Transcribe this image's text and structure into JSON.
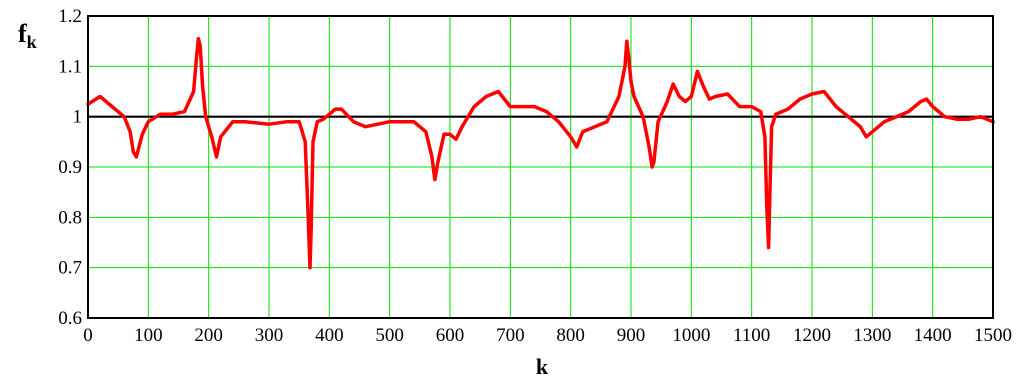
{
  "chart_data": {
    "type": "line",
    "title": "",
    "xlabel": "k",
    "ylabel": {
      "base": "f",
      "subscript": "k"
    },
    "xlim": [
      0,
      1500
    ],
    "ylim": [
      0.6,
      1.2
    ],
    "xticks": [
      "0",
      "100",
      "200",
      "300",
      "400",
      "500",
      "600",
      "700",
      "800",
      "900",
      "1000",
      "1100",
      "1200",
      "1300",
      "1400",
      "1500"
    ],
    "yticks": [
      "0.6",
      "0.7",
      "0.8",
      "0.9",
      "1",
      "1.1",
      "1.2"
    ],
    "xtick_values": [
      0,
      100,
      200,
      300,
      400,
      500,
      600,
      700,
      800,
      900,
      1000,
      1100,
      1200,
      1300,
      1400,
      1500
    ],
    "ytick_values": [
      0.6,
      0.7,
      0.8,
      0.9,
      1.0,
      1.1,
      1.2
    ],
    "grid": true,
    "reference_line": {
      "y": 1.0,
      "color": "#000000"
    },
    "colors": {
      "series": "#ff0000",
      "grid": "#00e000",
      "reference": "#000000"
    },
    "series": [
      {
        "x": [
          0,
          20,
          40,
          60,
          70,
          75,
          80,
          90,
          100,
          120,
          140,
          160,
          175,
          180,
          183,
          186,
          190,
          195,
          205,
          213,
          220,
          240,
          260,
          300,
          330,
          350,
          360,
          365,
          368,
          370,
          373,
          380,
          390,
          410,
          420,
          440,
          460,
          480,
          500,
          540,
          560,
          570,
          575,
          580,
          590,
          600,
          610,
          620,
          640,
          660,
          680,
          700,
          720,
          740,
          760,
          780,
          800,
          810,
          820,
          840,
          860,
          880,
          890,
          893,
          896,
          900,
          905,
          920,
          930,
          935,
          938,
          945,
          960,
          970,
          980,
          990,
          1000,
          1010,
          1020,
          1030,
          1040,
          1060,
          1080,
          1100,
          1115,
          1122,
          1125,
          1128,
          1130,
          1133,
          1140,
          1160,
          1180,
          1200,
          1220,
          1240,
          1260,
          1280,
          1290,
          1300,
          1320,
          1340,
          1360,
          1380,
          1390,
          1400,
          1410,
          1420,
          1440,
          1460,
          1480,
          1500
        ],
        "y": [
          1.025,
          1.04,
          1.02,
          1.0,
          0.97,
          0.93,
          0.92,
          0.965,
          0.99,
          1.005,
          1.005,
          1.01,
          1.05,
          1.12,
          1.155,
          1.14,
          1.06,
          1.0,
          0.96,
          0.92,
          0.96,
          0.99,
          0.99,
          0.985,
          0.99,
          0.99,
          0.95,
          0.8,
          0.7,
          0.78,
          0.95,
          0.99,
          0.995,
          1.015,
          1.015,
          0.99,
          0.98,
          0.985,
          0.99,
          0.99,
          0.97,
          0.92,
          0.875,
          0.91,
          0.965,
          0.965,
          0.955,
          0.98,
          1.02,
          1.04,
          1.05,
          1.02,
          1.02,
          1.02,
          1.01,
          0.99,
          0.96,
          0.94,
          0.97,
          0.98,
          0.99,
          1.04,
          1.1,
          1.15,
          1.12,
          1.07,
          1.04,
          1.0,
          0.94,
          0.9,
          0.91,
          0.99,
          1.03,
          1.065,
          1.04,
          1.03,
          1.04,
          1.09,
          1.06,
          1.035,
          1.04,
          1.045,
          1.02,
          1.02,
          1.01,
          0.96,
          0.82,
          0.74,
          0.84,
          0.98,
          1.005,
          1.015,
          1.035,
          1.045,
          1.05,
          1.02,
          1.0,
          0.98,
          0.96,
          0.97,
          0.99,
          1.0,
          1.01,
          1.03,
          1.035,
          1.02,
          1.01,
          1.0,
          0.995,
          0.995,
          1.0,
          0.99
        ]
      }
    ]
  }
}
